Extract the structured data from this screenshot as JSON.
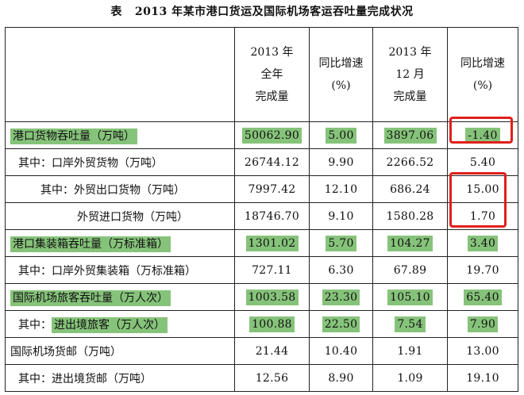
{
  "title": {
    "lead": "表",
    "text": "2013 年某市港口货运及国际机场客运吞吐量完成状况"
  },
  "headers": [
    {
      "lines": []
    },
    {
      "lines": [
        "2013 年",
        "全年",
        "完成量"
      ]
    },
    {
      "lines": [
        "同比增速",
        "(%)"
      ]
    },
    {
      "lines": [
        "2013 年",
        "12 月",
        "完成量"
      ]
    },
    {
      "lines": [
        "同比增速",
        "(%)"
      ]
    }
  ],
  "rows": [
    {
      "label_prefix": "",
      "label": "港口货物吞吐量（万吨）",
      "cells": [
        "50062.90",
        "5.00",
        "3897.06",
        "-1.40"
      ]
    },
    {
      "label_prefix": "其中：",
      "label": "口岸外贸货物（万吨）",
      "cells": [
        "26744.12",
        "9.90",
        "2266.52",
        "5.40"
      ]
    },
    {
      "label_prefix": "其中：",
      "label": "外贸出口货物（万吨）",
      "cells": [
        "7997.42",
        "12.10",
        "686.24",
        "15.00"
      ]
    },
    {
      "label_prefix": "",
      "label": "外贸进口货物（万吨）",
      "cells": [
        "18746.70",
        "9.10",
        "1580.28",
        "1.70"
      ]
    },
    {
      "label_prefix": "",
      "label": "港口集装箱吞吐量（万标准箱）",
      "cells": [
        "1301.02",
        "5.70",
        "104.27",
        "3.40"
      ]
    },
    {
      "label_prefix": "其中：",
      "label": "口岸外贸集装箱（万标准箱）",
      "cells": [
        "727.11",
        "6.30",
        "67.89",
        "19.70"
      ]
    },
    {
      "label_prefix": "",
      "label": "国际机场旅客吞吐量（万人次）",
      "cells": [
        "1003.58",
        "23.30",
        "105.10",
        "65.40"
      ]
    },
    {
      "label_prefix": "其中：",
      "label": "进出境旅客（万人次）",
      "cells": [
        "100.88",
        "22.50",
        "7.54",
        "7.90"
      ]
    },
    {
      "label_prefix": "",
      "label": "国际机场货邮（万吨）",
      "cells": [
        "21.44",
        "10.40",
        "1.91",
        "13.00"
      ]
    },
    {
      "label_prefix": "其中：",
      "label": "进出境货邮（万吨）",
      "cells": [
        "12.56",
        "8.90",
        "1.09",
        "19.10"
      ]
    }
  ],
  "colors": {
    "highlight": "#86c37a",
    "annotation_box": "#e0201b"
  }
}
